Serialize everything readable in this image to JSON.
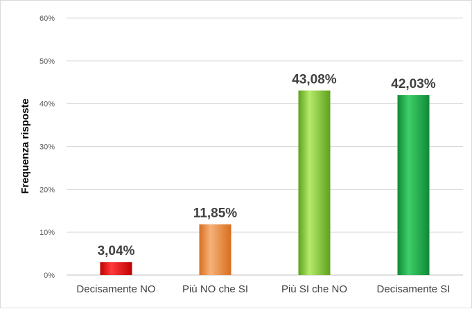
{
  "chart_data": {
    "type": "bar",
    "categories": [
      "Decisamente NO",
      "Più NO che SI",
      "Più SI che NO",
      "Decisamente SI"
    ],
    "values": [
      3.04,
      11.85,
      43.08,
      42.03
    ],
    "data_labels": [
      "3,04%",
      "11,85%",
      "43,08%",
      "42,03%"
    ],
    "ylabel": "Frequenza risposte",
    "ylim": [
      0,
      60
    ],
    "yticks": [
      0,
      10,
      20,
      30,
      40,
      50,
      60
    ],
    "ytick_labels": [
      "0%",
      "10%",
      "20%",
      "30%",
      "40%",
      "50%",
      "60%"
    ],
    "grid": true,
    "legend": "none",
    "colors": {
      "bars": [
        [
          "#ff3b3b",
          "#c00000"
        ],
        [
          "#f6b27a",
          "#d86e1e"
        ],
        [
          "#b6ea6a",
          "#5ea01e"
        ],
        [
          "#3fce6a",
          "#0f8a35"
        ]
      ],
      "grid": "#d9d9d9",
      "axis": "#bfbfbf"
    }
  }
}
